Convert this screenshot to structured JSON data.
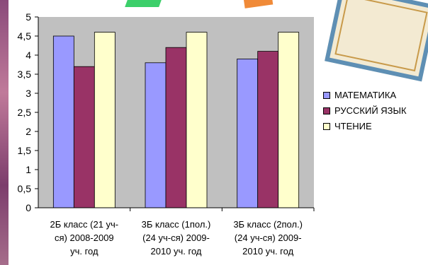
{
  "chart_data": {
    "type": "bar",
    "categories": [
      [
        "2Б класс (21 уч-",
        "ся) 2008-2009",
        "уч. год"
      ],
      [
        "3Б класс (1пол.)",
        "(24 уч-ся)  2009-",
        "2010 уч. год"
      ],
      [
        "3Б класс (2пол.)",
        "(24 уч-ся)  2009-",
        "2010 уч. год"
      ]
    ],
    "series": [
      {
        "name": "МАТЕМАТИКА",
        "values": [
          4.5,
          3.8,
          3.9
        ],
        "color": "#9999ff"
      },
      {
        "name": "РУССКИЙ ЯЗЫК",
        "values": [
          3.7,
          4.2,
          4.1
        ],
        "color": "#993366"
      },
      {
        "name": "ЧТЕНИЕ",
        "values": [
          4.6,
          4.6,
          4.6
        ],
        "color": "#ffffcc"
      }
    ],
    "ylim": [
      0,
      5
    ],
    "yticks": [
      "0",
      "0,5",
      "1",
      "1,5",
      "2",
      "2,5",
      "3",
      "3,5",
      "4",
      "4,5",
      "5"
    ],
    "plot_background": "#c0c0c0",
    "legend_position": "right",
    "grid": false
  }
}
